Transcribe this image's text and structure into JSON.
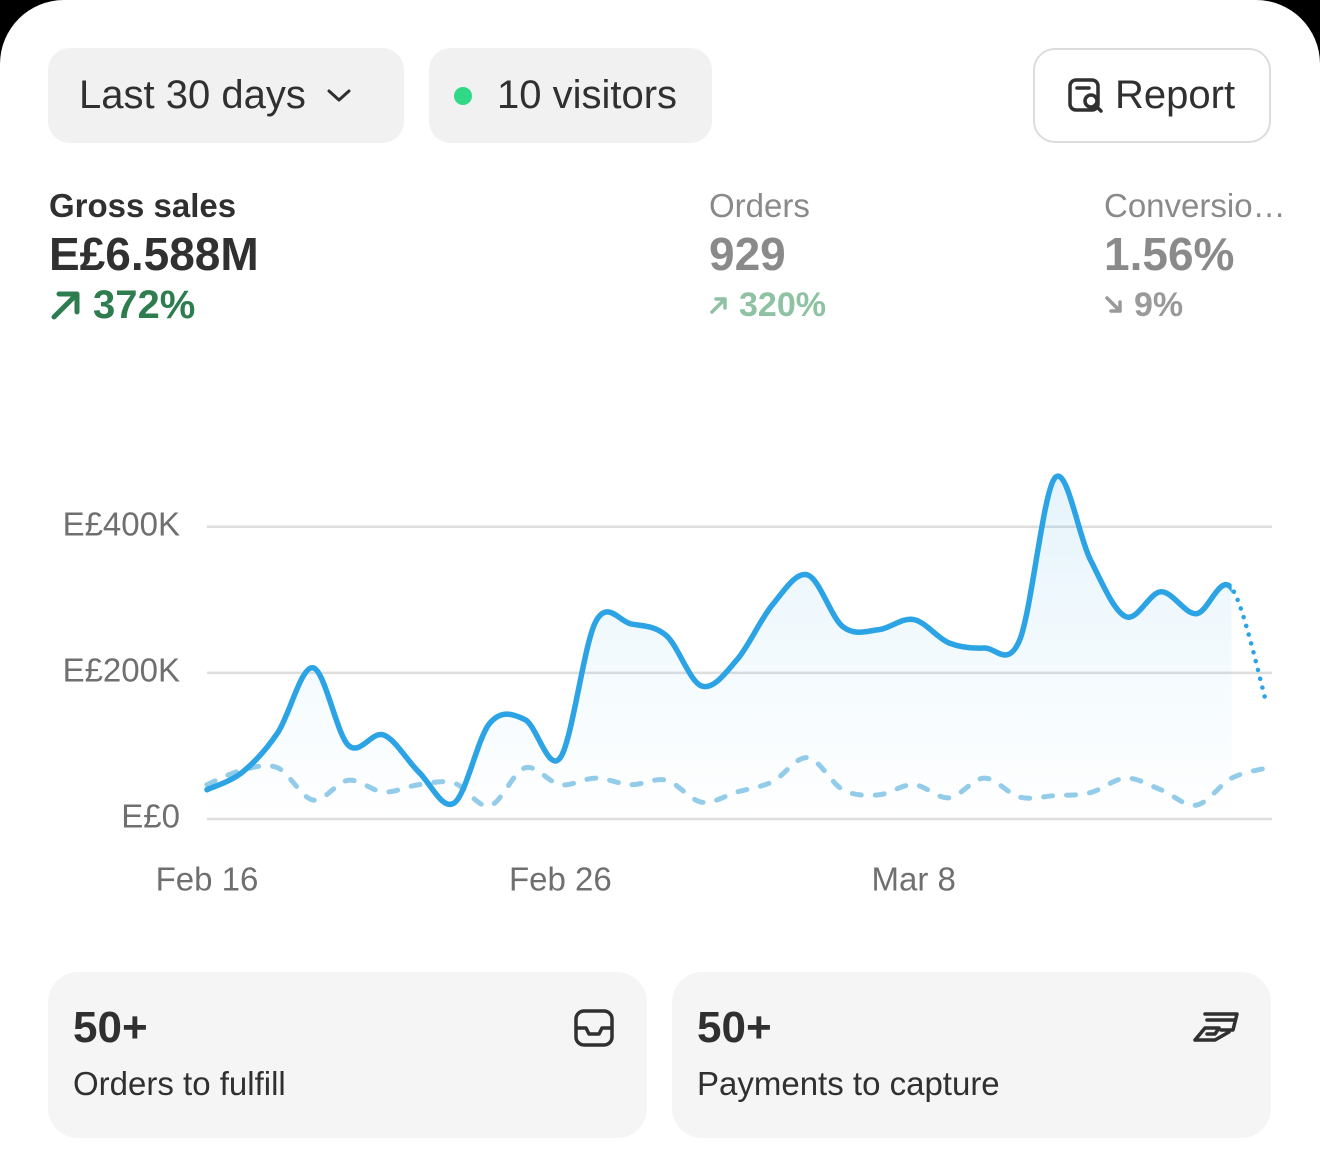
{
  "filters": {
    "period": "Last 30 days",
    "visitors": "10 visitors",
    "report": "Report"
  },
  "metrics": [
    {
      "label": "Gross sales",
      "value": "E£6.588M",
      "change": "372%"
    },
    {
      "label": "Orders",
      "value": "929",
      "change": "320%"
    },
    {
      "label": "Conversio…",
      "value": "1.56%",
      "change": "9%"
    }
  ],
  "chart_data": {
    "type": "line",
    "categories": [
      "Feb 16",
      null,
      null,
      null,
      null,
      null,
      null,
      null,
      null,
      null,
      "Feb 26",
      null,
      null,
      null,
      null,
      null,
      null,
      null,
      null,
      null,
      "Mar 8",
      null,
      null,
      null,
      null,
      null,
      null,
      null,
      null,
      null,
      null
    ],
    "series": [
      {
        "color": "#2ba3e4",
        "values": [
          40,
          64,
          118,
          207,
          101,
          115,
          64,
          22,
          131,
          136,
          84,
          270,
          267,
          251,
          182,
          218,
          293,
          334,
          263,
          259,
          273,
          241,
          234,
          245,
          467,
          355,
          277,
          311,
          281,
          316,
          156
        ]
      },
      {
        "color": "#93cce9",
        "dashed": true,
        "values": [
          47,
          67,
          70,
          26,
          53,
          37,
          47,
          49,
          18,
          70,
          47,
          56,
          47,
          53,
          23,
          37,
          51,
          84,
          40,
          33,
          47,
          29,
          56,
          30,
          32,
          36,
          56,
          40,
          19,
          56,
          70
        ]
      }
    ],
    "ylim": [
      0,
      490
    ],
    "yticks": [
      {
        "value": 0,
        "label": "E£0"
      },
      {
        "value": 200000,
        "label": "E£200K"
      },
      {
        "value": 400000,
        "label": "E£400K"
      }
    ],
    "grid": true
  },
  "cards": [
    {
      "value": "50+",
      "label": "Orders to fulfill"
    },
    {
      "value": "50+",
      "label": "Payments to capture"
    }
  ]
}
